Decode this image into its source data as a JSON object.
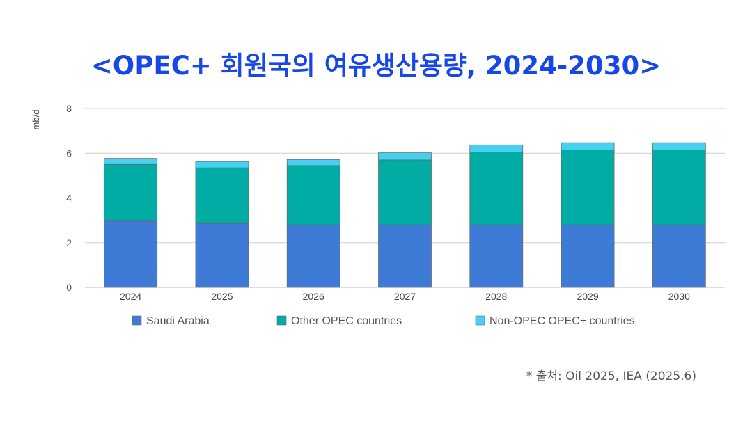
{
  "title": "<OPEC+ 회원국의 여유생산용량, 2024-2030>",
  "source": "* 출처: Oil 2025, IEA (2025.6)",
  "chart_data": {
    "type": "bar",
    "stacked": true,
    "title": "<OPEC+ 회원국의 여유생산용량, 2024-2030>",
    "xlabel": "",
    "ylabel": "mb/d",
    "ylim": [
      0,
      8
    ],
    "yticks": [
      0,
      2,
      4,
      6,
      8
    ],
    "grid": true,
    "legend_position": "bottom",
    "categories": [
      "2024",
      "2025",
      "2026",
      "2027",
      "2028",
      "2029",
      "2030"
    ],
    "series": [
      {
        "name": "Saudi Arabia",
        "color": "#3e7bd6",
        "values": [
          3.0,
          2.85,
          2.8,
          2.8,
          2.8,
          2.8,
          2.8
        ]
      },
      {
        "name": "Other OPEC countries",
        "color": "#00aca4",
        "values": [
          2.5,
          2.5,
          2.65,
          2.9,
          3.25,
          3.35,
          3.35
        ]
      },
      {
        "name": "Non-OPEC OPEC+ countries",
        "color": "#44d1f2",
        "values": [
          0.27,
          0.28,
          0.27,
          0.32,
          0.32,
          0.32,
          0.32
        ]
      }
    ]
  }
}
